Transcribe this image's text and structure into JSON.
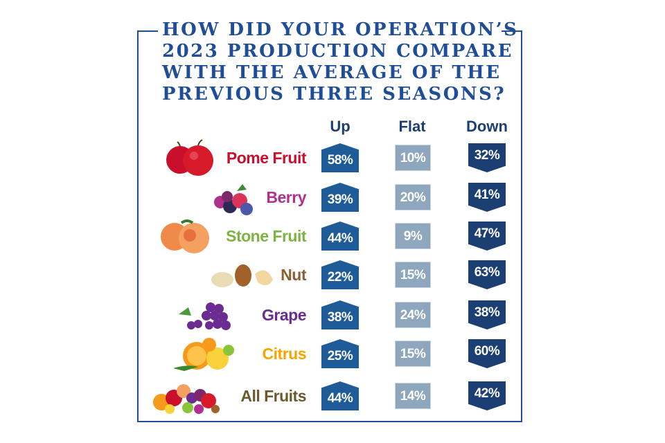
{
  "chart_data": {
    "type": "table",
    "title": [
      "HOW DID YOUR OPERATION’S",
      "2023 PRODUCTION COMPARE",
      "WITH THE AVERAGE OF THE",
      "PREVIOUS THREE SEASONS?"
    ],
    "columns": [
      "Up",
      "Flat",
      "Down"
    ],
    "rows": [
      {
        "category": "Pome Fruit",
        "color": "#c8102e",
        "up": "58%",
        "flat": "10%",
        "down": "32%"
      },
      {
        "category": "Berry",
        "color": "#b0308f",
        "up": "39%",
        "flat": "20%",
        "down": "41%"
      },
      {
        "category": "Stone Fruit",
        "color": "#7cb342",
        "up": "44%",
        "flat": "9%",
        "down": "47%"
      },
      {
        "category": "Nut",
        "color": "#8b5e34",
        "up": "22%",
        "flat": "15%",
        "down": "63%"
      },
      {
        "category": "Grape",
        "color": "#6a2c91",
        "up": "38%",
        "flat": "24%",
        "down": "38%"
      },
      {
        "category": "Citrus",
        "color": "#f5a500",
        "up": "25%",
        "flat": "15%",
        "down": "60%"
      },
      {
        "category": "All Fruits",
        "color": "#6b5a2e",
        "up": "44%",
        "flat": "14%",
        "down": "42%"
      }
    ]
  },
  "colors": {
    "border": "#1f4e96",
    "up": "#1f5c97",
    "flat": "#8fa7bd",
    "down": "#1b3f73"
  }
}
